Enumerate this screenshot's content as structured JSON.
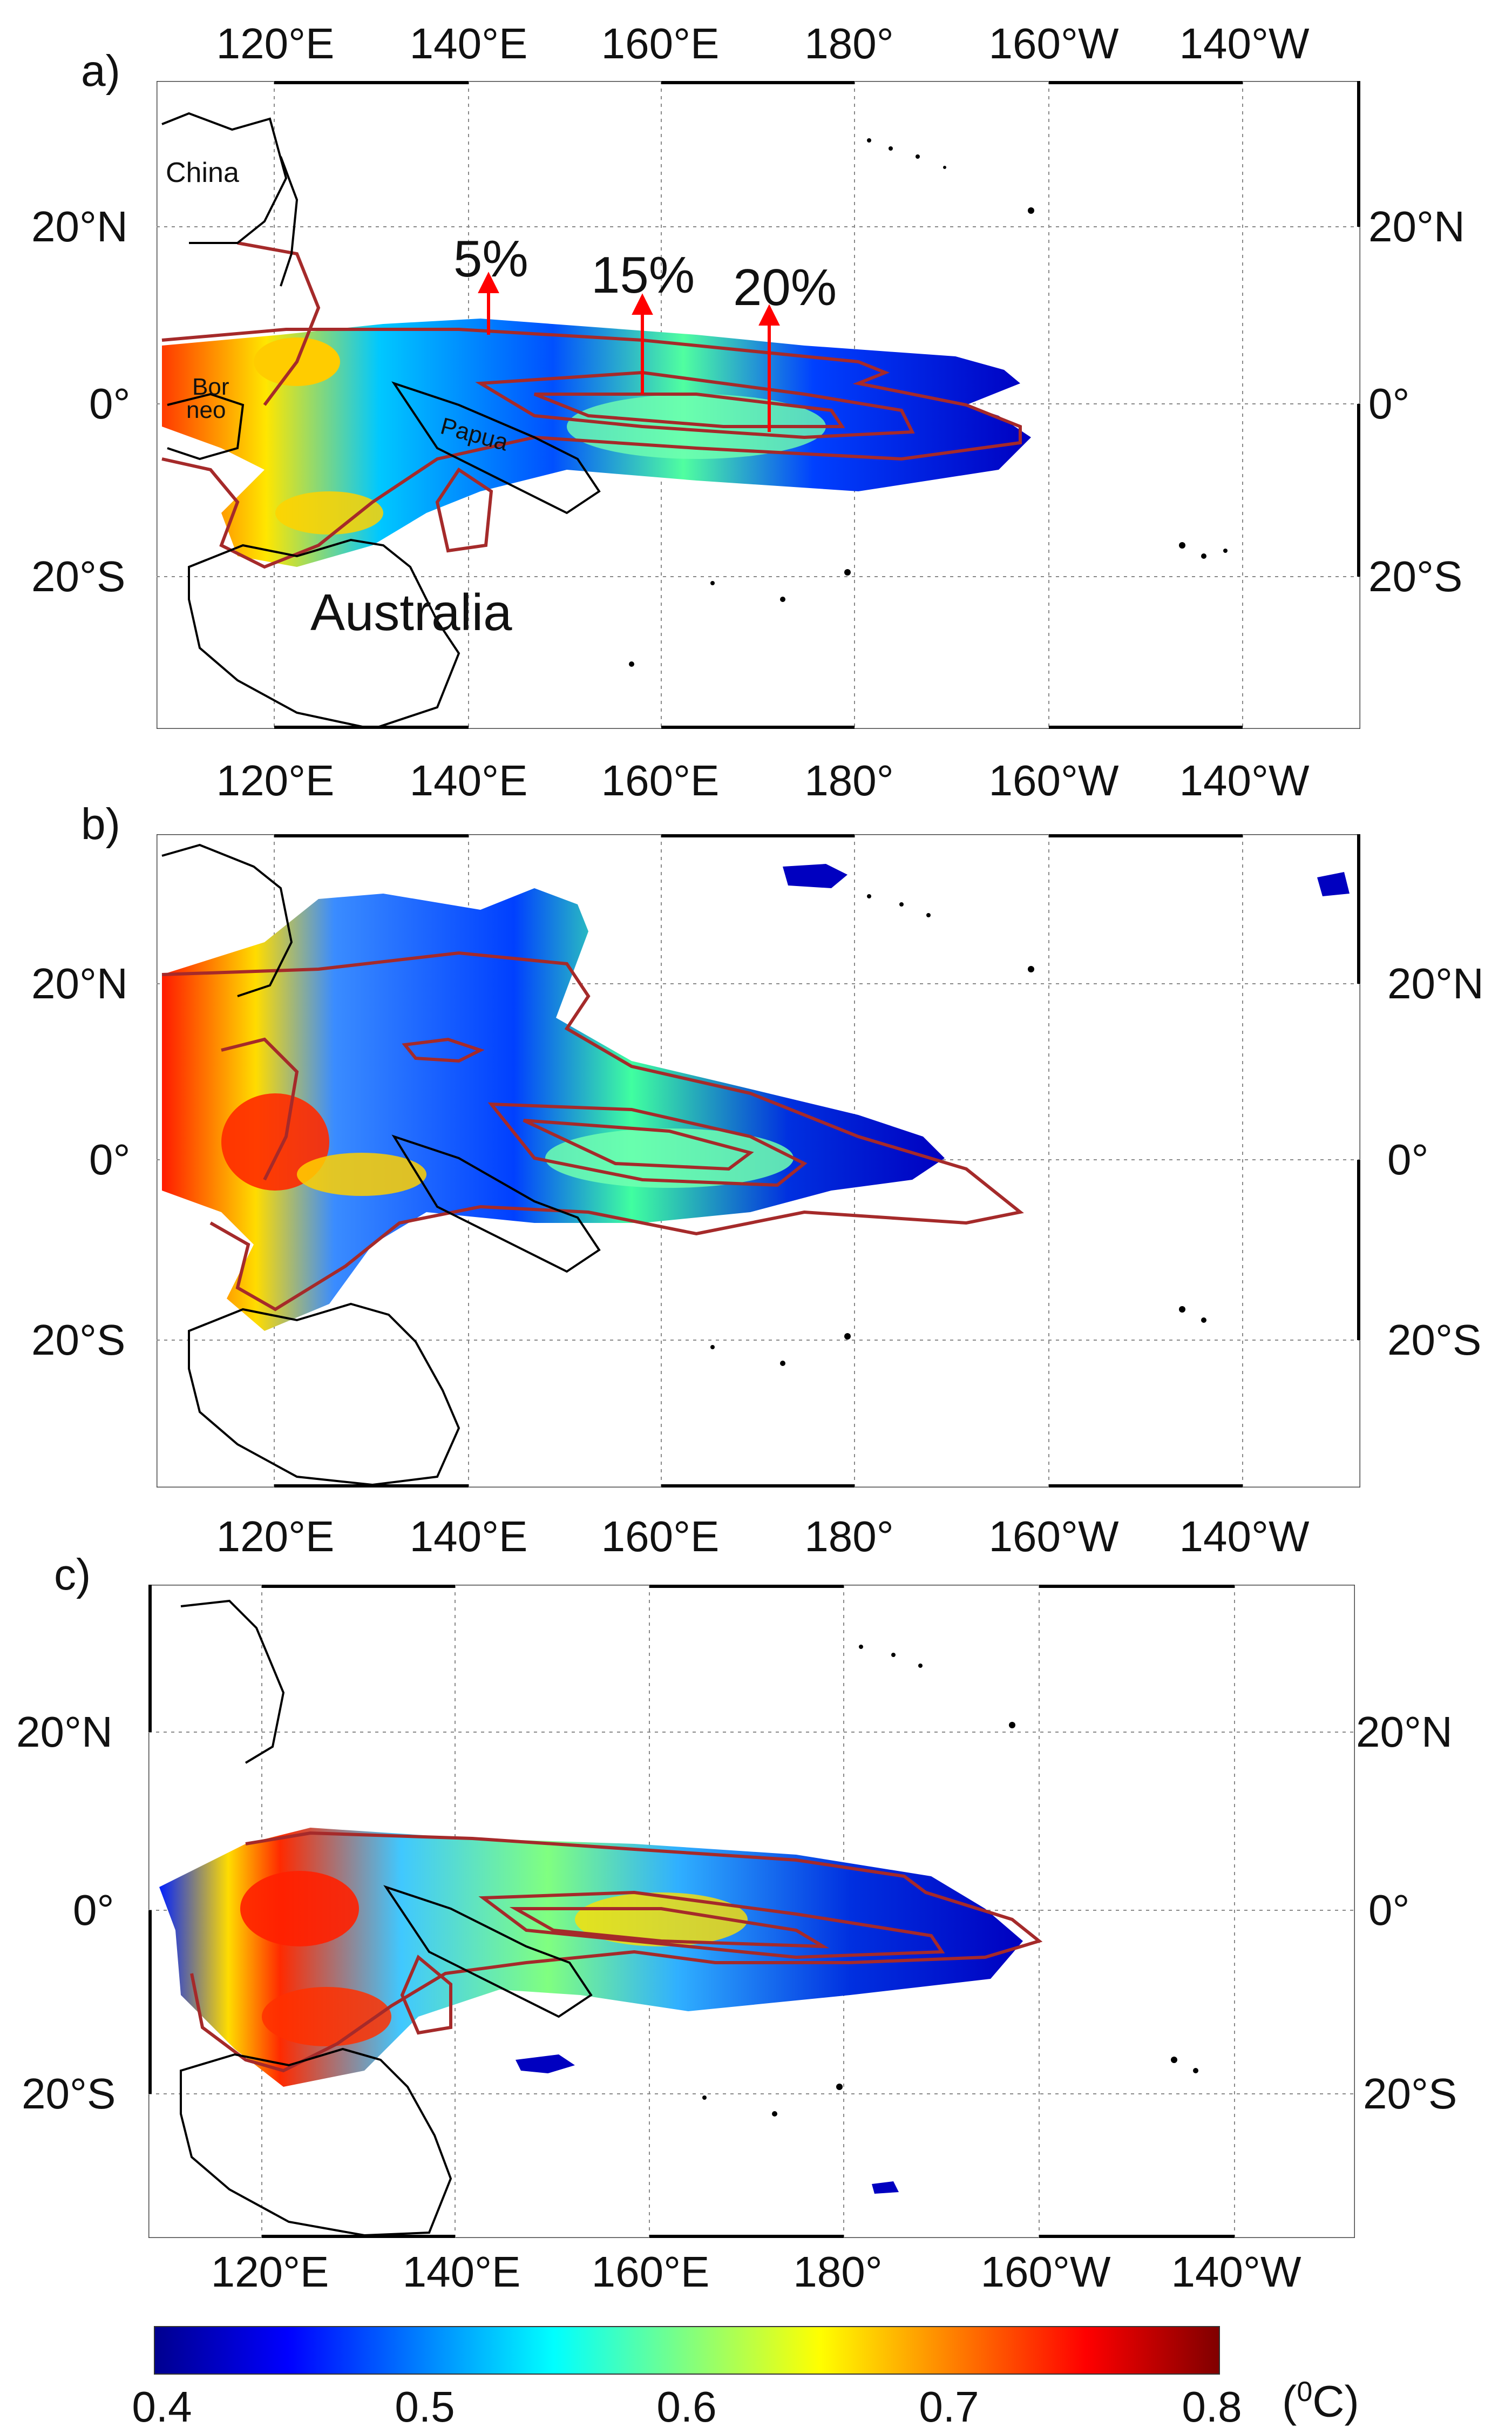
{
  "panels": [
    {
      "label": "a)",
      "lon_ticks_top": [
        "120°E",
        "140°E",
        "160°E",
        "180°",
        "160°W",
        "140°W"
      ],
      "lon_ticks_bottom": [],
      "lat_ticks_left": [
        "20°N",
        "0°",
        "20°S"
      ],
      "lat_ticks_right": [
        "20°N",
        "0°",
        "20°S"
      ],
      "annotations": {
        "china": "China",
        "borneo_1": "Bor",
        "borneo_2": "neo",
        "papua": "Papua",
        "australia": "Australia",
        "pct_5": "5%",
        "pct_15": "15%",
        "pct_20": "20%"
      }
    },
    {
      "label": "b)",
      "lon_ticks_top": [
        "120°E",
        "140°E",
        "160°E",
        "180°",
        "160°W",
        "140°W"
      ],
      "lon_ticks_bottom": [],
      "lat_ticks_left": [
        "20°N",
        "0°",
        "20°S"
      ],
      "lat_ticks_right": [
        "20°N",
        "0°",
        "20°S"
      ]
    },
    {
      "label": "c)",
      "lon_ticks_top": [
        "120°E",
        "140°E",
        "160°E",
        "180°",
        "160°W",
        "140°W"
      ],
      "lon_ticks_bottom": [
        "120°E",
        "140°E",
        "160°E",
        "180°",
        "160°W",
        "140°W"
      ],
      "lat_ticks_left": [
        "20°N",
        "0°",
        "20°S"
      ],
      "lat_ticks_right": [
        "20°N",
        "0°",
        "20°S"
      ]
    }
  ],
  "colorbar": {
    "ticks": [
      "0.4",
      "0.5",
      "0.6",
      "0.7",
      "0.8"
    ],
    "unit_open": "(",
    "unit_sup": "0",
    "unit_rest": "C)",
    "range": [
      0.4,
      0.8
    ],
    "colors": [
      "#00008f",
      "#0000ff",
      "#0080ff",
      "#00ffff",
      "#80ff80",
      "#ffff00",
      "#ff8000",
      "#ff0000",
      "#800000"
    ]
  },
  "colors": {
    "contour": "#a52a2a",
    "arrow": "#ff0000",
    "coast": "#000000",
    "grid": "#888888"
  }
}
